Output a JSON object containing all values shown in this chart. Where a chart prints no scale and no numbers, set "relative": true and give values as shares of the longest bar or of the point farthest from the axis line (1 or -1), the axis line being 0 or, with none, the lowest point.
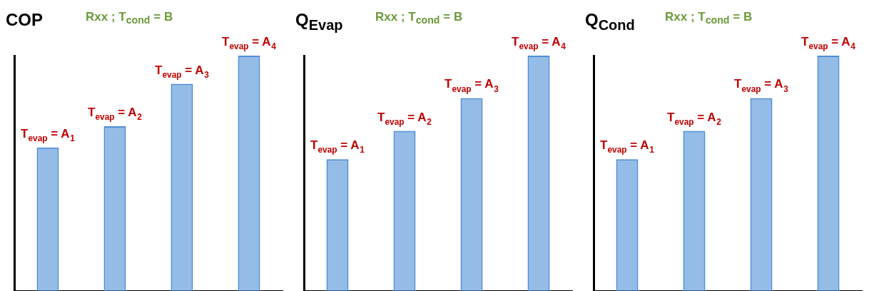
{
  "chart_data": [
    {
      "type": "bar",
      "title": "COP",
      "subtitle": "Rxx ; T$_{cond}$ = B",
      "relative": true,
      "categories": [
        "T$_{evap}$ = A$_{1}$",
        "T$_{evap}$ = A$_{2}$",
        "T$_{evap}$ = A$_{3}$",
        "T$_{evap}$ = A$_{4}$"
      ],
      "color": "#4f8fd6",
      "values": [
        0.61,
        0.7,
        0.88,
        1
      ]
    },
    {
      "type": "bar",
      "title": "Q$_{Evap}$",
      "subtitle": "Rxx ; T$_{cond}$ = B",
      "relative": true,
      "categories": [
        "T$_{evap}$ = A$_{1}$",
        "T$_{evap}$ = A$_{2}$",
        "T$_{evap}$ = A$_{3}$",
        "T$_{evap}$ = A$_{4}$"
      ],
      "color": "#4f8fd6",
      "values": [
        0.56,
        0.68,
        0.82,
        1
      ]
    },
    {
      "type": "bar",
      "title": "Q$_{Cond}$",
      "subtitle": "Rxx ; T$_{cond}$ = B",
      "relative": true,
      "categories": [
        "T$_{evap}$ = A$_{1}$",
        "T$_{evap}$ = A$_{2}$",
        "T$_{evap}$ = A$_{3}$",
        "T$_{evap}$ = A$_{4}$"
      ],
      "color": "#4f8fd6",
      "values": [
        0.56,
        0.68,
        0.82,
        1
      ]
    }
  ]
}
